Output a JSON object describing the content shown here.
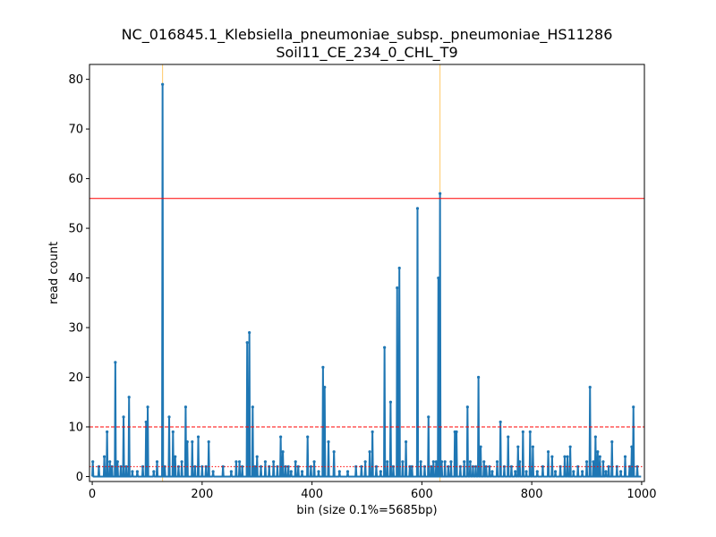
{
  "chart_data": {
    "type": "line",
    "title": "NC_016845.1_Klebsiella_pneumoniae_subsp._pneumoniae_HS11286",
    "subtitle": "Soil11_CE_234_0_CHL_T9",
    "xlabel": "bin (size 0.1%=5685bp)",
    "ylabel": "read count",
    "xlim": [
      -5,
      1005
    ],
    "ylim": [
      -1,
      83
    ],
    "xticks": [
      0,
      200,
      400,
      600,
      800,
      1000
    ],
    "yticks": [
      0,
      10,
      20,
      30,
      40,
      50,
      60,
      70,
      80
    ],
    "grid": false,
    "legend": "none",
    "series_color": "#1f77b4",
    "hlines": [
      {
        "y": 56,
        "color": "#ff0000",
        "style": "solid"
      },
      {
        "y": 10,
        "color": "#ff0000",
        "style": "dashed"
      },
      {
        "y": 2,
        "color": "#ff0000",
        "style": "dotted"
      }
    ],
    "vlines": [
      {
        "x": 128,
        "color": "#ffa500"
      },
      {
        "x": 633,
        "color": "#ffa500"
      }
    ],
    "peaks": [
      [
        1,
        3
      ],
      [
        12,
        2
      ],
      [
        22,
        4
      ],
      [
        27,
        9
      ],
      [
        32,
        3
      ],
      [
        36,
        2
      ],
      [
        42,
        23
      ],
      [
        46,
        3
      ],
      [
        52,
        2
      ],
      [
        57,
        12
      ],
      [
        62,
        2
      ],
      [
        67,
        16
      ],
      [
        73,
        1
      ],
      [
        82,
        1
      ],
      [
        92,
        2
      ],
      [
        98,
        11
      ],
      [
        101,
        14
      ],
      [
        112,
        1
      ],
      [
        118,
        3
      ],
      [
        128,
        79
      ],
      [
        132,
        2
      ],
      [
        140,
        12
      ],
      [
        147,
        9
      ],
      [
        151,
        4
      ],
      [
        157,
        2
      ],
      [
        163,
        3
      ],
      [
        170,
        14
      ],
      [
        173,
        7
      ],
      [
        182,
        7
      ],
      [
        187,
        2
      ],
      [
        193,
        8
      ],
      [
        200,
        2
      ],
      [
        207,
        2
      ],
      [
        212,
        7
      ],
      [
        220,
        1
      ],
      [
        238,
        2
      ],
      [
        253,
        1
      ],
      [
        262,
        3
      ],
      [
        268,
        3
      ],
      [
        273,
        2
      ],
      [
        282,
        27
      ],
      [
        286,
        29
      ],
      [
        292,
        14
      ],
      [
        296,
        2
      ],
      [
        300,
        4
      ],
      [
        307,
        2
      ],
      [
        315,
        3
      ],
      [
        322,
        2
      ],
      [
        330,
        3
      ],
      [
        337,
        2
      ],
      [
        343,
        8
      ],
      [
        347,
        5
      ],
      [
        352,
        2
      ],
      [
        357,
        2
      ],
      [
        362,
        1
      ],
      [
        370,
        3
      ],
      [
        375,
        2
      ],
      [
        382,
        1
      ],
      [
        392,
        8
      ],
      [
        398,
        2
      ],
      [
        404,
        3
      ],
      [
        412,
        1
      ],
      [
        420,
        22
      ],
      [
        423,
        18
      ],
      [
        430,
        7
      ],
      [
        440,
        5
      ],
      [
        450,
        1
      ],
      [
        465,
        1
      ],
      [
        480,
        2
      ],
      [
        490,
        2
      ],
      [
        497,
        3
      ],
      [
        505,
        5
      ],
      [
        510,
        9
      ],
      [
        517,
        2
      ],
      [
        525,
        1
      ],
      [
        532,
        26
      ],
      [
        537,
        3
      ],
      [
        543,
        15
      ],
      [
        548,
        2
      ],
      [
        555,
        38
      ],
      [
        559,
        42
      ],
      [
        565,
        3
      ],
      [
        571,
        7
      ],
      [
        578,
        2
      ],
      [
        582,
        2
      ],
      [
        592,
        54
      ],
      [
        598,
        3
      ],
      [
        605,
        2
      ],
      [
        612,
        12
      ],
      [
        617,
        2
      ],
      [
        621,
        3
      ],
      [
        626,
        3
      ],
      [
        630,
        40
      ],
      [
        633,
        57
      ],
      [
        636,
        3
      ],
      [
        642,
        3
      ],
      [
        648,
        2
      ],
      [
        653,
        3
      ],
      [
        660,
        9
      ],
      [
        663,
        9
      ],
      [
        670,
        2
      ],
      [
        677,
        3
      ],
      [
        683,
        14
      ],
      [
        688,
        3
      ],
      [
        693,
        2
      ],
      [
        698,
        2
      ],
      [
        703,
        20
      ],
      [
        707,
        6
      ],
      [
        713,
        3
      ],
      [
        717,
        2
      ],
      [
        723,
        2
      ],
      [
        728,
        1
      ],
      [
        737,
        3
      ],
      [
        743,
        11
      ],
      [
        750,
        2
      ],
      [
        757,
        8
      ],
      [
        763,
        2
      ],
      [
        770,
        1
      ],
      [
        775,
        6
      ],
      [
        778,
        3
      ],
      [
        784,
        9
      ],
      [
        790,
        1
      ],
      [
        797,
        9
      ],
      [
        802,
        6
      ],
      [
        810,
        1
      ],
      [
        820,
        2
      ],
      [
        830,
        5
      ],
      [
        837,
        4
      ],
      [
        843,
        1
      ],
      [
        852,
        2
      ],
      [
        860,
        4
      ],
      [
        865,
        4
      ],
      [
        870,
        6
      ],
      [
        876,
        1
      ],
      [
        884,
        2
      ],
      [
        892,
        1
      ],
      [
        900,
        3
      ],
      [
        906,
        18
      ],
      [
        912,
        3
      ],
      [
        916,
        8
      ],
      [
        920,
        5
      ],
      [
        924,
        4
      ],
      [
        930,
        3
      ],
      [
        935,
        1
      ],
      [
        940,
        2
      ],
      [
        946,
        7
      ],
      [
        955,
        2
      ],
      [
        962,
        1
      ],
      [
        970,
        4
      ],
      [
        978,
        2
      ],
      [
        982,
        6
      ],
      [
        985,
        14
      ],
      [
        992,
        2
      ],
      [
        998,
        0
      ]
    ]
  }
}
